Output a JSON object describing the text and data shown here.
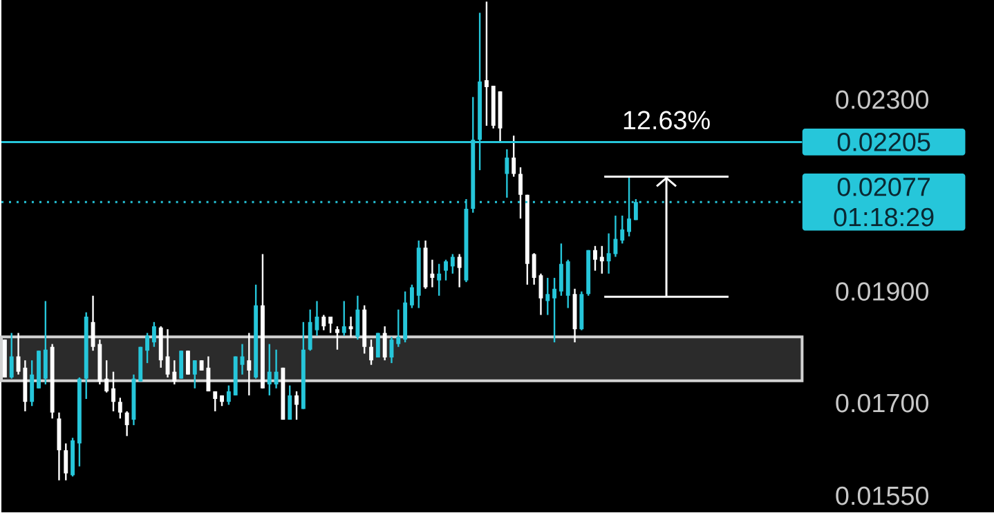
{
  "chart_data": {
    "type": "candlestick",
    "log": true,
    "tick_labels": "y",
    "categories": [
      null,
      null,
      null,
      null,
      null,
      null,
      null,
      null,
      null,
      null,
      null,
      null,
      null,
      null,
      null,
      null,
      null,
      null,
      null,
      null,
      null,
      null,
      null,
      null,
      null,
      null,
      null,
      null,
      null,
      null,
      null,
      null,
      null,
      null,
      null,
      null,
      null,
      null,
      null,
      null,
      null,
      null,
      null,
      null,
      null,
      null,
      null,
      null,
      null,
      null,
      null,
      null,
      null,
      null,
      null,
      null,
      null,
      null,
      null,
      null,
      null,
      null,
      null,
      null,
      null,
      null,
      null,
      null,
      null,
      null,
      null,
      null,
      null,
      null,
      null,
      null,
      null,
      null,
      null,
      null,
      null,
      null,
      null,
      null,
      null,
      null,
      null,
      null,
      null,
      null,
      null,
      null,
      null,
      null,
      null,
      null,
      null,
      null,
      null,
      null,
      null,
      null,
      null,
      null,
      null,
      null,
      null,
      null,
      null,
      null,
      null,
      null,
      null,
      null,
      null,
      null,
      null,
      null
    ],
    "ohlc": [
      [
        0.01811,
        0.01811,
        0.01744,
        0.01744
      ],
      [
        0.01744,
        0.01823,
        0.01742,
        0.01781
      ],
      [
        0.01781,
        0.01823,
        0.01749,
        0.01754
      ],
      [
        0.01761,
        0.01774,
        0.01686,
        0.01702
      ],
      [
        0.01702,
        0.01774,
        0.01695,
        0.01749
      ],
      [
        0.01725,
        0.01791,
        0.01725,
        0.01791
      ],
      [
        0.01742,
        0.01882,
        0.01732,
        0.01793
      ],
      [
        0.01798,
        0.01803,
        0.01674,
        0.01684
      ],
      [
        0.01674,
        0.01684,
        0.01574,
        0.01622
      ],
      [
        0.01622,
        0.01633,
        0.01574,
        0.01585
      ],
      [
        0.01582,
        0.01642,
        0.0158,
        0.01638
      ],
      [
        0.01633,
        0.01744,
        0.01596,
        0.01742
      ],
      [
        0.01742,
        0.01861,
        0.01707,
        0.01853
      ],
      [
        0.01843,
        0.01892,
        0.01791,
        0.01798
      ],
      [
        0.01803,
        0.01811,
        0.01732,
        0.01737
      ],
      [
        0.01742,
        0.01774,
        0.01718,
        0.0172
      ],
      [
        0.01725,
        0.01754,
        0.01686,
        0.01702
      ],
      [
        0.01702,
        0.01709,
        0.01674,
        0.01684
      ],
      [
        0.01684,
        0.01686,
        0.01645,
        0.01663
      ],
      [
        0.01672,
        0.01749,
        0.01663,
        0.01742
      ],
      [
        0.01737,
        0.01798,
        0.01737,
        0.01798
      ],
      [
        0.01791,
        0.01823,
        0.01769,
        0.01818
      ],
      [
        0.01806,
        0.01843,
        0.01798,
        0.01835
      ],
      [
        0.01833,
        0.01835,
        0.01761,
        0.01774
      ],
      [
        0.01781,
        0.0183,
        0.01744,
        0.01749
      ],
      [
        0.01754,
        0.01774,
        0.01732,
        0.01737
      ],
      [
        0.01742,
        0.01791,
        0.01742,
        0.01791
      ],
      [
        0.01791,
        0.01791,
        0.01749,
        0.01749
      ],
      [
        0.01749,
        0.01774,
        0.01725,
        0.01774
      ],
      [
        0.01774,
        0.01774,
        0.01756,
        0.01756
      ],
      [
        0.01761,
        0.01781,
        0.0172,
        0.0172
      ],
      [
        0.0172,
        0.0172,
        0.01686,
        0.01707
      ],
      [
        0.01713,
        0.01713,
        0.01695,
        0.01702
      ],
      [
        0.01702,
        0.0173,
        0.01697,
        0.0172
      ],
      [
        0.01713,
        0.01781,
        0.01713,
        0.01781
      ],
      [
        0.01766,
        0.01803,
        0.01749,
        0.01781
      ],
      [
        0.01774,
        0.01823,
        0.01713,
        0.01756
      ],
      [
        0.01744,
        0.01913,
        0.01742,
        0.01874
      ],
      [
        0.01874,
        0.01972,
        0.01725,
        0.01725
      ],
      [
        0.01732,
        0.01803,
        0.01713,
        0.01754
      ],
      [
        0.01732,
        0.01793,
        0.01725,
        0.01754
      ],
      [
        0.01761,
        0.01761,
        0.01672,
        0.01672
      ],
      [
        0.01672,
        0.0173,
        0.01672,
        0.01713
      ],
      [
        0.01713,
        0.0172,
        0.01672,
        0.01697
      ],
      [
        0.0169,
        0.01843,
        0.0169,
        0.01793
      ],
      [
        0.01793,
        0.01866,
        0.01791,
        0.01843
      ],
      [
        0.01828,
        0.01882,
        0.01818,
        0.01853
      ],
      [
        0.01853,
        0.01856,
        0.01828,
        0.01835
      ],
      [
        0.01853,
        0.01853,
        0.01823,
        0.0184
      ],
      [
        0.0183,
        0.01835,
        0.01793,
        0.01823
      ],
      [
        0.01823,
        0.01882,
        0.01818,
        0.01835
      ],
      [
        0.01835,
        0.01853,
        0.01816,
        0.0183
      ],
      [
        0.01816,
        0.01892,
        0.01811,
        0.01866
      ],
      [
        0.01866,
        0.01874,
        0.01786,
        0.01798
      ],
      [
        0.01798,
        0.01811,
        0.01766,
        0.01774
      ],
      [
        0.01779,
        0.01823,
        0.01779,
        0.01823
      ],
      [
        0.01823,
        0.01835,
        0.01774,
        0.01779
      ],
      [
        0.01779,
        0.01816,
        0.01769,
        0.01811
      ],
      [
        0.01803,
        0.01866,
        0.01798,
        0.01816
      ],
      [
        0.01811,
        0.019,
        0.01806,
        0.01879
      ],
      [
        0.01874,
        0.01913,
        0.01869,
        0.01908
      ],
      [
        0.01892,
        0.01999,
        0.01869,
        0.01985
      ],
      [
        0.01985,
        0.01999,
        0.01905,
        0.01908
      ],
      [
        0.01934,
        0.01961,
        0.01908,
        0.01926
      ],
      [
        0.01921,
        0.01953,
        0.01892,
        0.01934
      ],
      [
        0.0194,
        0.01961,
        0.01921,
        0.01958
      ],
      [
        0.01948,
        0.01972,
        0.01934,
        0.01967
      ],
      [
        0.01967,
        0.01972,
        0.01908,
        0.01945
      ],
      [
        0.01921,
        0.02083,
        0.01918,
        0.02063
      ],
      [
        0.02063,
        0.02306,
        0.02055,
        0.0221
      ],
      [
        0.0221,
        0.02508,
        0.02144,
        0.02342
      ],
      [
        0.02345,
        0.02536,
        0.02241,
        0.02329
      ],
      [
        0.02332,
        0.02332,
        0.02235,
        0.02241
      ],
      [
        0.02319,
        0.02319,
        0.02204,
        0.02235
      ],
      [
        0.02136,
        0.02189,
        0.02086,
        0.02171
      ],
      [
        0.02171,
        0.02219,
        0.0213,
        0.02136
      ],
      [
        0.02136,
        0.0215,
        0.02043,
        0.02092
      ],
      [
        0.02092,
        0.02092,
        0.01913,
        0.01953
      ],
      [
        0.01972,
        0.01974,
        0.01913,
        0.01926
      ],
      [
        0.01931,
        0.01934,
        0.01856,
        0.01887
      ],
      [
        0.01882,
        0.01926,
        0.01856,
        0.01895
      ],
      [
        0.01887,
        0.01926,
        0.01806,
        0.01905
      ],
      [
        0.019,
        0.01993,
        0.01892,
        0.01953
      ],
      [
        0.01892,
        0.01961,
        0.01869,
        0.01958
      ],
      [
        0.01895,
        0.01905,
        0.01806,
        0.0183
      ],
      [
        0.0183,
        0.019,
        0.01828,
        0.01895
      ],
      [
        0.01895,
        0.0198,
        0.01892,
        0.0198
      ],
      [
        0.0198,
        0.01988,
        0.0194,
        0.01961
      ],
      [
        0.01967,
        0.01988,
        0.01934,
        0.01958
      ],
      [
        0.01958,
        0.02013,
        0.01934,
        0.01974
      ],
      [
        0.01972,
        0.02049,
        0.01967,
        0.02002
      ],
      [
        0.01999,
        0.02049,
        0.01993,
        0.02021
      ],
      [
        0.02016,
        0.0213,
        0.02007,
        0.02043
      ],
      [
        0.0204,
        0.02083,
        0.0204,
        0.02077
      ],
      null,
      null,
      null,
      null,
      null,
      null,
      null,
      null,
      null,
      null,
      null,
      null,
      null,
      null,
      null,
      null,
      null,
      null,
      null,
      null,
      null,
      null,
      null,
      null
    ],
    "ylim": [
      0.0155,
      0.0254
    ],
    "yticks": [
      {
        "value": 0.023,
        "label": "0.02300"
      },
      {
        "value": 0.019,
        "label": "0.01900"
      },
      {
        "value": 0.017,
        "label": "0.01700"
      },
      {
        "value": 0.0155,
        "label": "0.01550"
      }
    ],
    "ref_lines": [
      {
        "axis": "y",
        "value": 0.02205,
        "label": "0.02205",
        "color": "#26c6da",
        "line_style": "solid"
      },
      {
        "axis": "y",
        "value": 0.02077,
        "label": "0.02077 01:18:29",
        "color": "#26c6da",
        "line_style": "dotted"
      }
    ],
    "bands": [
      {
        "axis": "y",
        "from": 0.01738,
        "to": 0.01816,
        "color": "#2b2b2b"
      }
    ],
    "annotations": [
      "12.63%"
    ]
  }
}
